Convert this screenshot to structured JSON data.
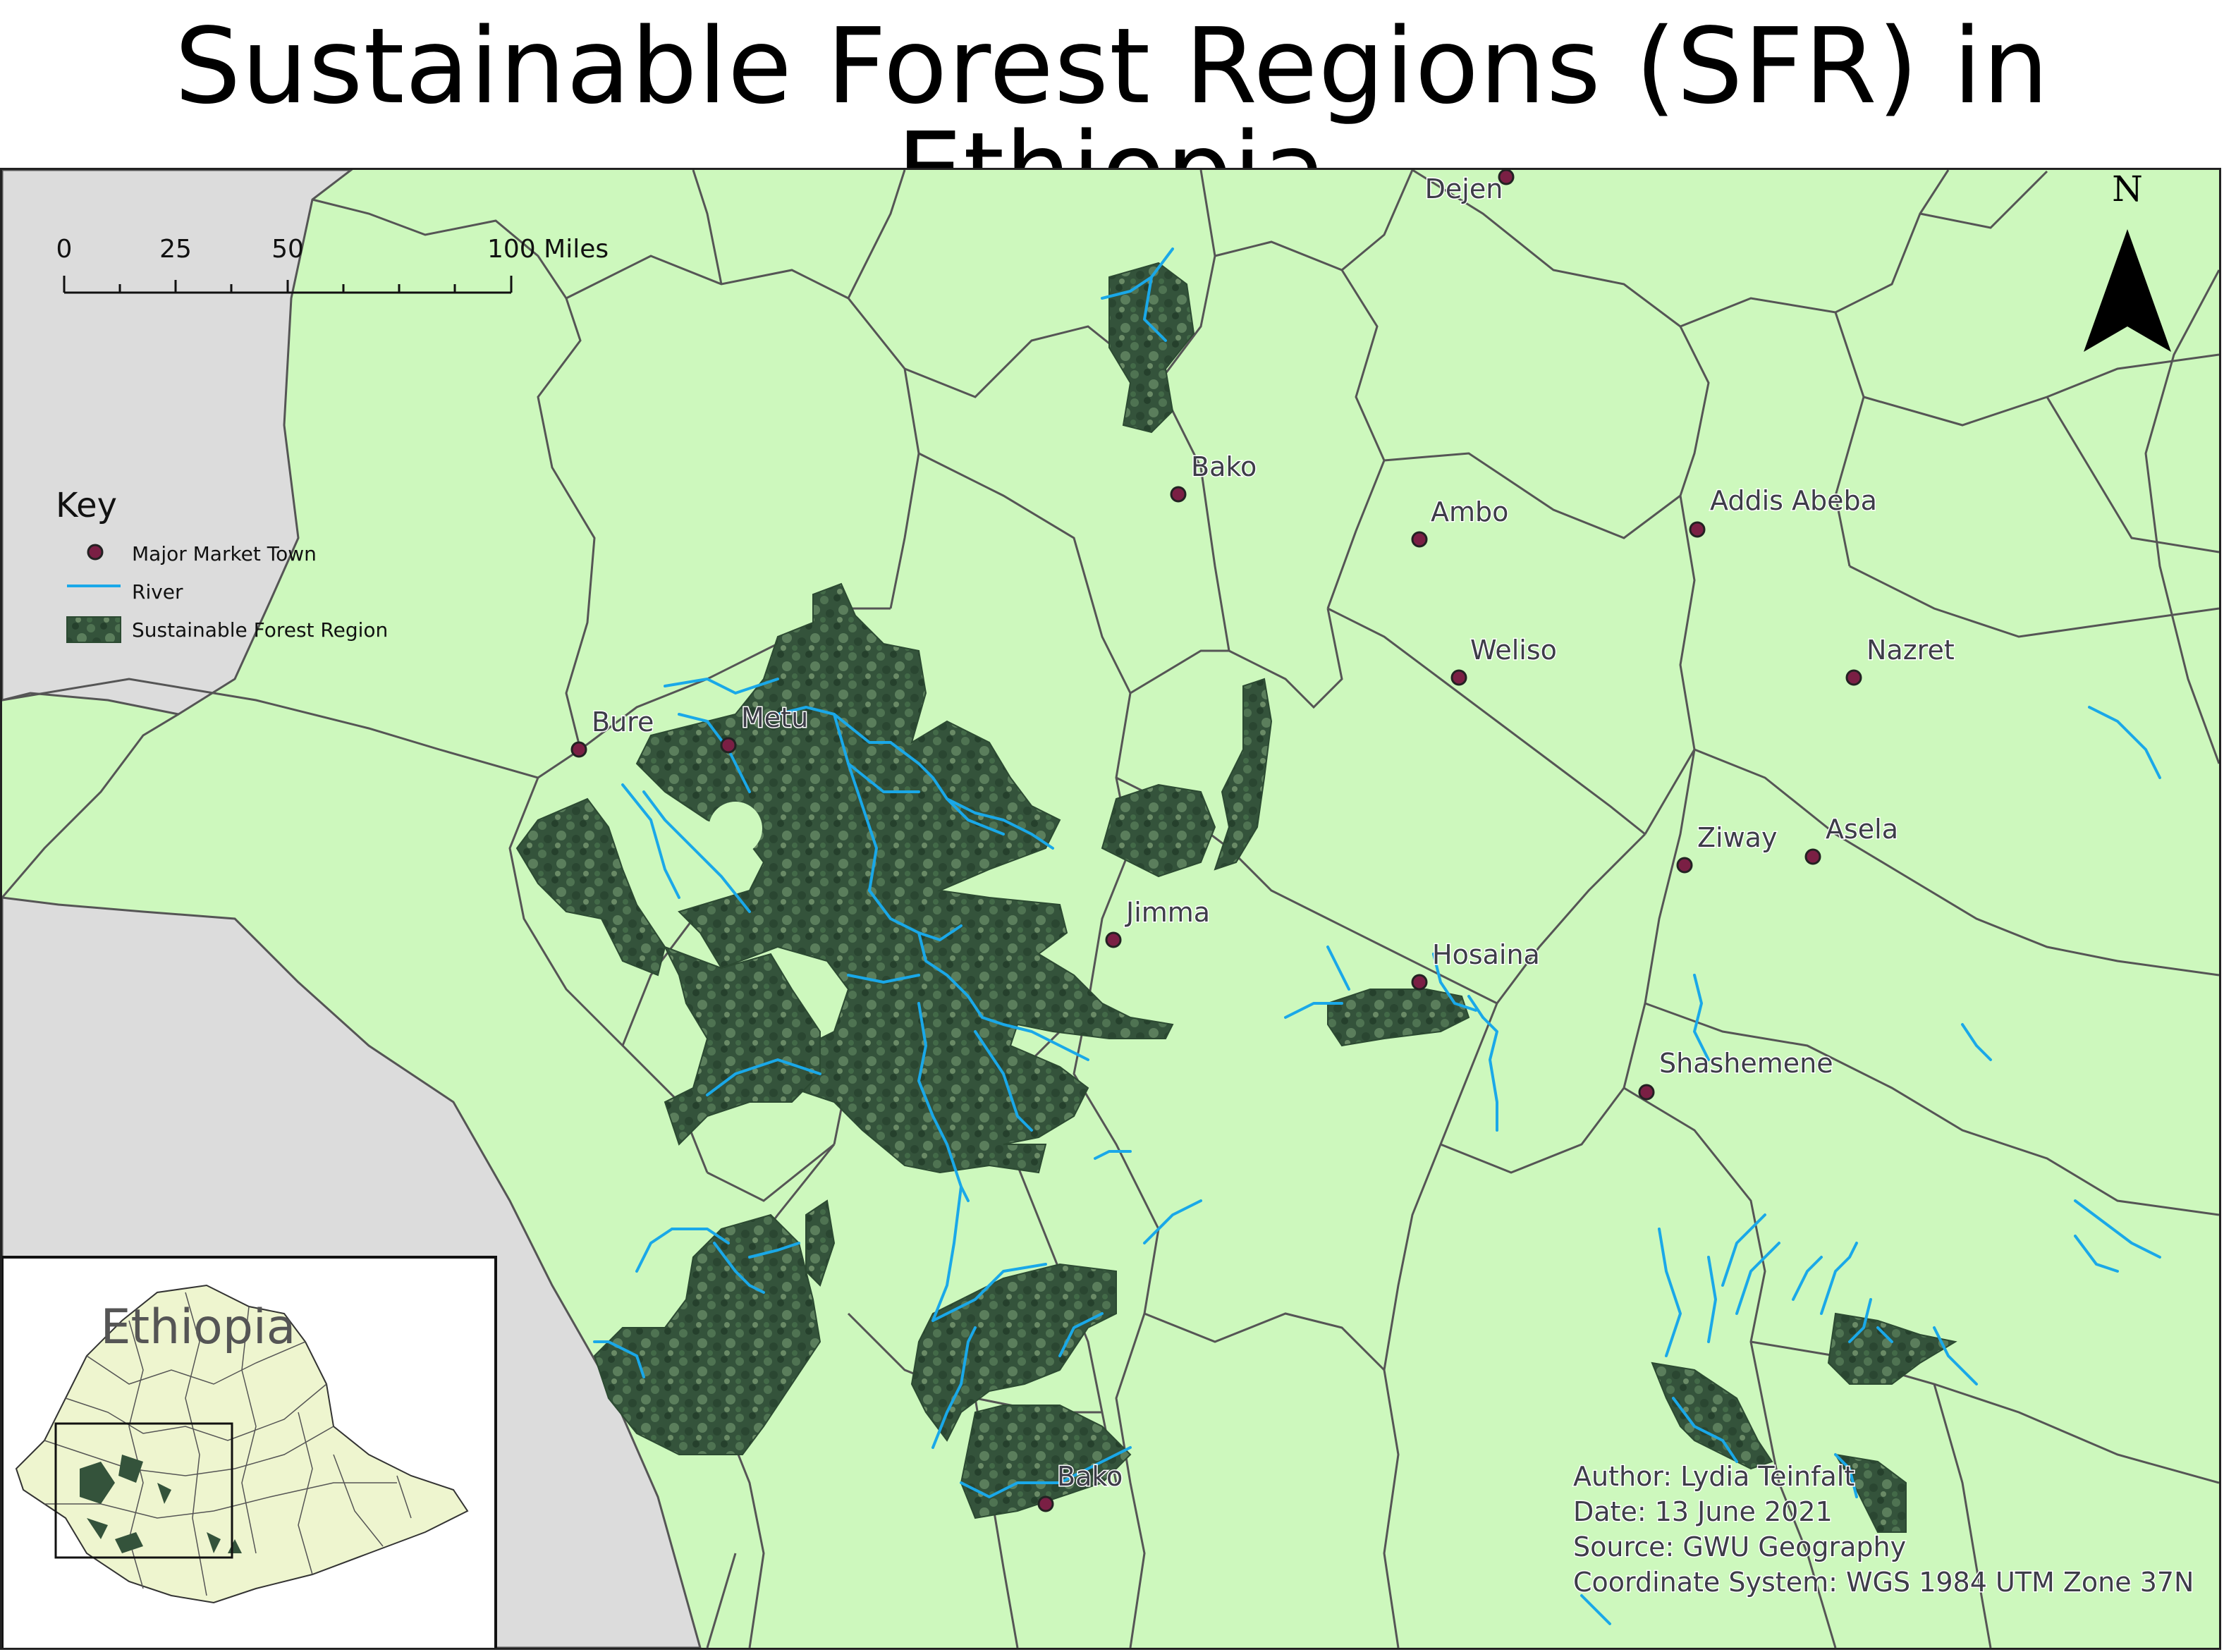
{
  "title": "Sustainable Forest Regions (SFR) in Ethiopia",
  "colors": {
    "land": "#cdf8bd",
    "outside": "#dcdcdc",
    "forest": "#34533b",
    "river": "#1aa8e8",
    "town": "#7a1f44",
    "boundary": "#555555",
    "inset_land": "#eef5cf"
  },
  "scale_bar": {
    "ticks": [
      "0",
      "25",
      "50",
      "100 Miles"
    ]
  },
  "north_arrow": {
    "label": "N"
  },
  "legend": {
    "title": "Key",
    "items": [
      {
        "label": "Major Market Town",
        "symbol": "town-dot"
      },
      {
        "label": "River",
        "symbol": "river-line"
      },
      {
        "label": "Sustainable Forest Region",
        "symbol": "forest-fill"
      }
    ]
  },
  "towns": [
    {
      "name": "Dejen"
    },
    {
      "name": "Bako"
    },
    {
      "name": "Ambo"
    },
    {
      "name": "Addis Abeba"
    },
    {
      "name": "Weliso"
    },
    {
      "name": "Nazret"
    },
    {
      "name": "Bure"
    },
    {
      "name": "Metu"
    },
    {
      "name": "Jimma"
    },
    {
      "name": "Ziway"
    },
    {
      "name": "Asela"
    },
    {
      "name": "Hosaina"
    },
    {
      "name": "Shashemene"
    },
    {
      "name": "Bako"
    }
  ],
  "inset": {
    "label": "Ethiopia"
  },
  "credits": {
    "author": "Author: Lydia Teinfalt",
    "date": "Date: 13 June 2021",
    "source": "Source: GWU Geography",
    "crs": "Coordinate System: WGS 1984 UTM Zone 37N"
  }
}
